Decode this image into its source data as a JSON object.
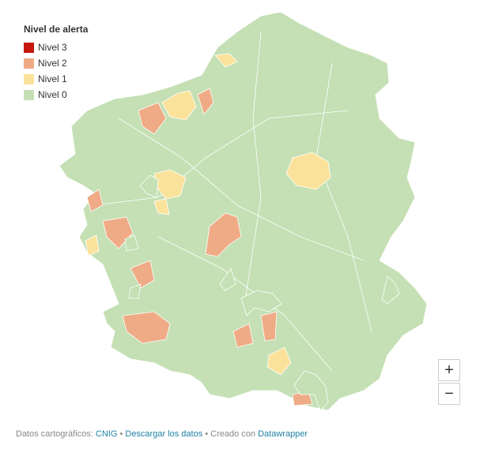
{
  "legend": {
    "title": "Nivel de alerta",
    "items": [
      {
        "label": "Nivel 3",
        "color": "#c4170f"
      },
      {
        "label": "Nivel 2",
        "color": "#efab86"
      },
      {
        "label": "Nivel 1",
        "color": "#fbe29b"
      },
      {
        "label": "Nivel 0",
        "color": "#c4e0b4"
      }
    ]
  },
  "zoom": {
    "in": "+",
    "out": "−"
  },
  "footer": {
    "prefix": "Datos cartográficos:",
    "source": "CNIG",
    "sep1": "•",
    "download": "Descargar los datos",
    "sep2": "• Creado con",
    "tool": "Datawrapper"
  }
}
